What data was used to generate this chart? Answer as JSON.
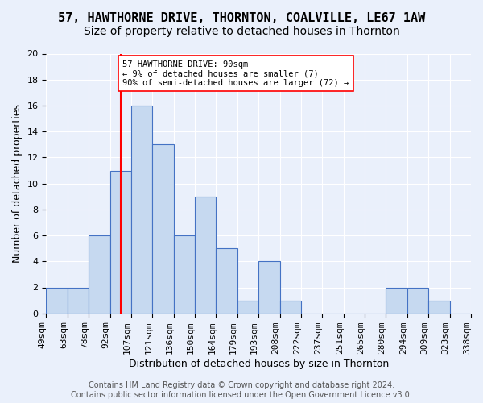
{
  "title": "57, HAWTHORNE DRIVE, THORNTON, COALVILLE, LE67 1AW",
  "subtitle": "Size of property relative to detached houses in Thornton",
  "xlabel": "Distribution of detached houses by size in Thornton",
  "ylabel": "Number of detached properties",
  "bin_labels": [
    "49sqm",
    "63sqm",
    "78sqm",
    "92sqm",
    "107sqm",
    "121sqm",
    "136sqm",
    "150sqm",
    "164sqm",
    "179sqm",
    "193sqm",
    "208sqm",
    "222sqm",
    "237sqm",
    "251sqm",
    "265sqm",
    "280sqm",
    "294sqm",
    "309sqm",
    "323sqm",
    "338sqm"
  ],
  "bar_heights": [
    2,
    2,
    6,
    11,
    16,
    13,
    6,
    9,
    5,
    1,
    4,
    1,
    0,
    0,
    0,
    0,
    2,
    2,
    1,
    0
  ],
  "bar_color": "#c6d9f0",
  "bar_edge_color": "#4472c4",
  "vline_color": "#ff0000",
  "vline_position": 3.5,
  "annotation_text": "57 HAWTHORNE DRIVE: 90sqm\n← 9% of detached houses are smaller (7)\n90% of semi-detached houses are larger (72) →",
  "annotation_box_color": "#ffffff",
  "annotation_box_edge": "#ff0000",
  "ylim": [
    0,
    20
  ],
  "yticks": [
    0,
    2,
    4,
    6,
    8,
    10,
    12,
    14,
    16,
    18,
    20
  ],
  "footer": "Contains HM Land Registry data © Crown copyright and database right 2024.\nContains public sector information licensed under the Open Government Licence v3.0.",
  "background_color": "#eaf0fb",
  "plot_background": "#eaf0fb",
  "grid_color": "#ffffff",
  "title_fontsize": 11,
  "subtitle_fontsize": 10,
  "axis_label_fontsize": 9,
  "tick_fontsize": 8,
  "footer_fontsize": 7
}
